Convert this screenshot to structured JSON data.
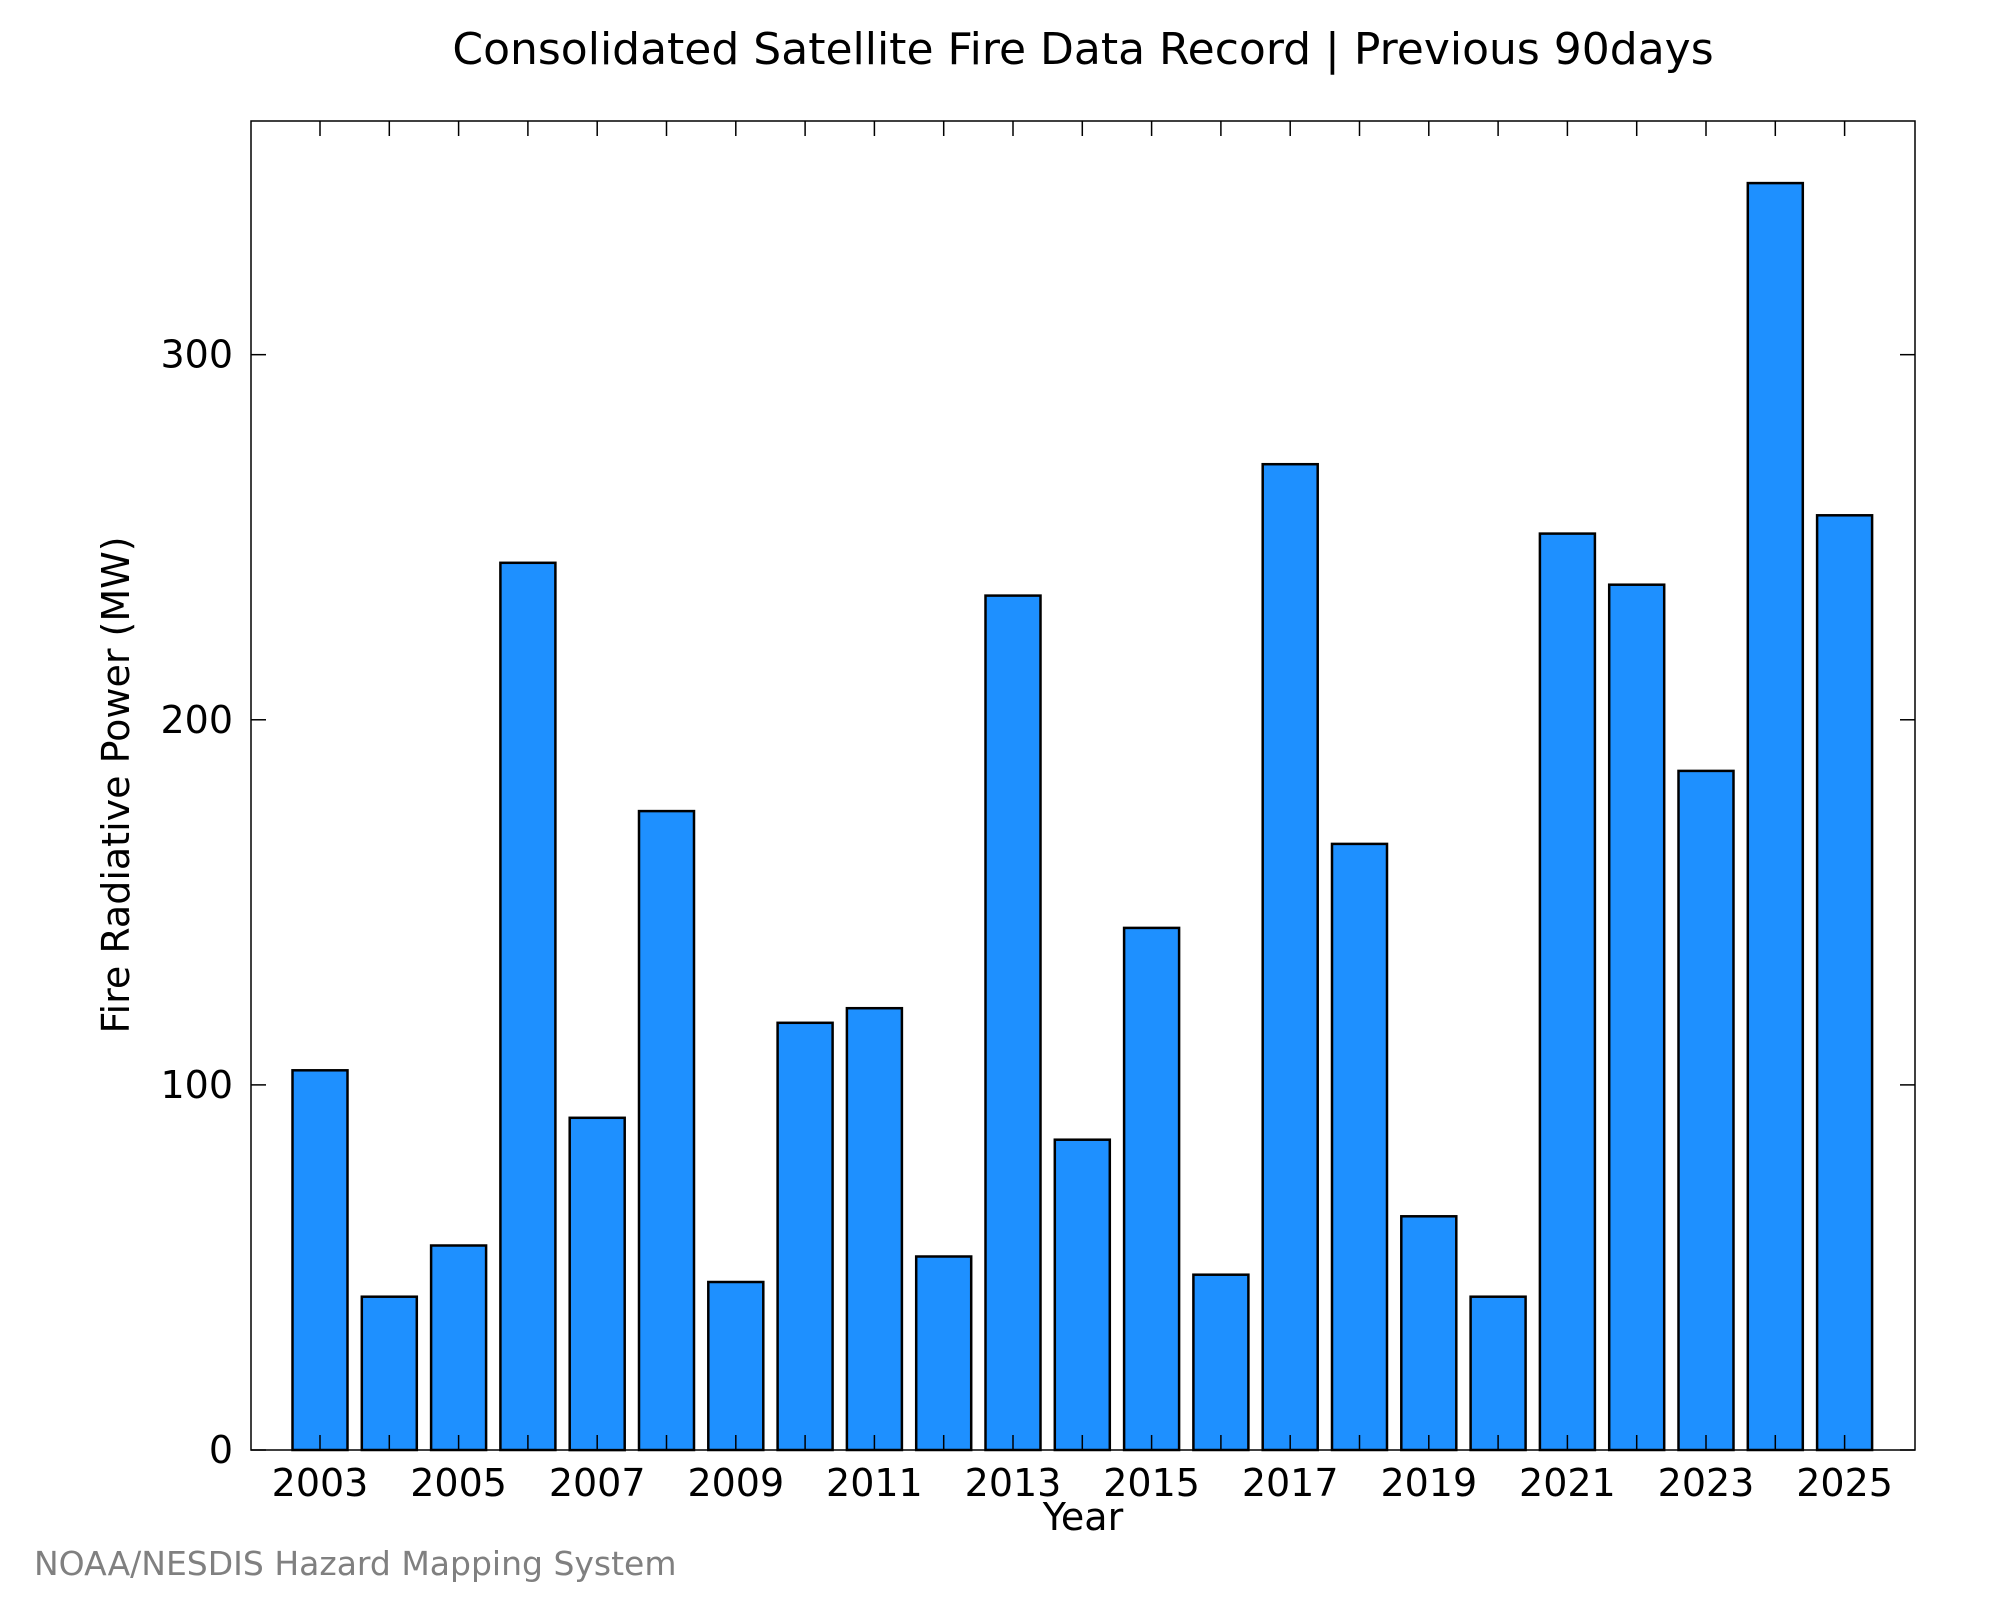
{
  "chart_data": {
    "type": "bar",
    "title": "Consolidated Satellite Fire Data Record | Previous 90days",
    "xlabel": "Year",
    "ylabel": "Fire Radiative Power (MW)",
    "categories": [
      "2003",
      "2004",
      "2005",
      "2006",
      "2007",
      "2008",
      "2009",
      "2010",
      "2011",
      "2012",
      "2013",
      "2014",
      "2015",
      "2016",
      "2017",
      "2018",
      "2019",
      "2020",
      "2021",
      "2022",
      "2023",
      "2024",
      "2025"
    ],
    "values": [
      104,
      42,
      56,
      243,
      91,
      175,
      46,
      117,
      121,
      53,
      234,
      85,
      143,
      48,
      270,
      166,
      64,
      42,
      251,
      237,
      186,
      347,
      256
    ],
    "x_tick_labels": [
      "2003",
      "2005",
      "2007",
      "2009",
      "2011",
      "2013",
      "2015",
      "2017",
      "2019",
      "2021",
      "2023",
      "2025"
    ],
    "y_ticks": [
      0,
      100,
      200,
      300
    ],
    "ylim": [
      0,
      364
    ],
    "grid": false,
    "legend": "none",
    "bar_color": "#1E90FF",
    "bar_edge_color": "#000000"
  },
  "credit": {
    "text": "NOAA/NESDIS Hazard Mapping System",
    "color": "#808080"
  }
}
